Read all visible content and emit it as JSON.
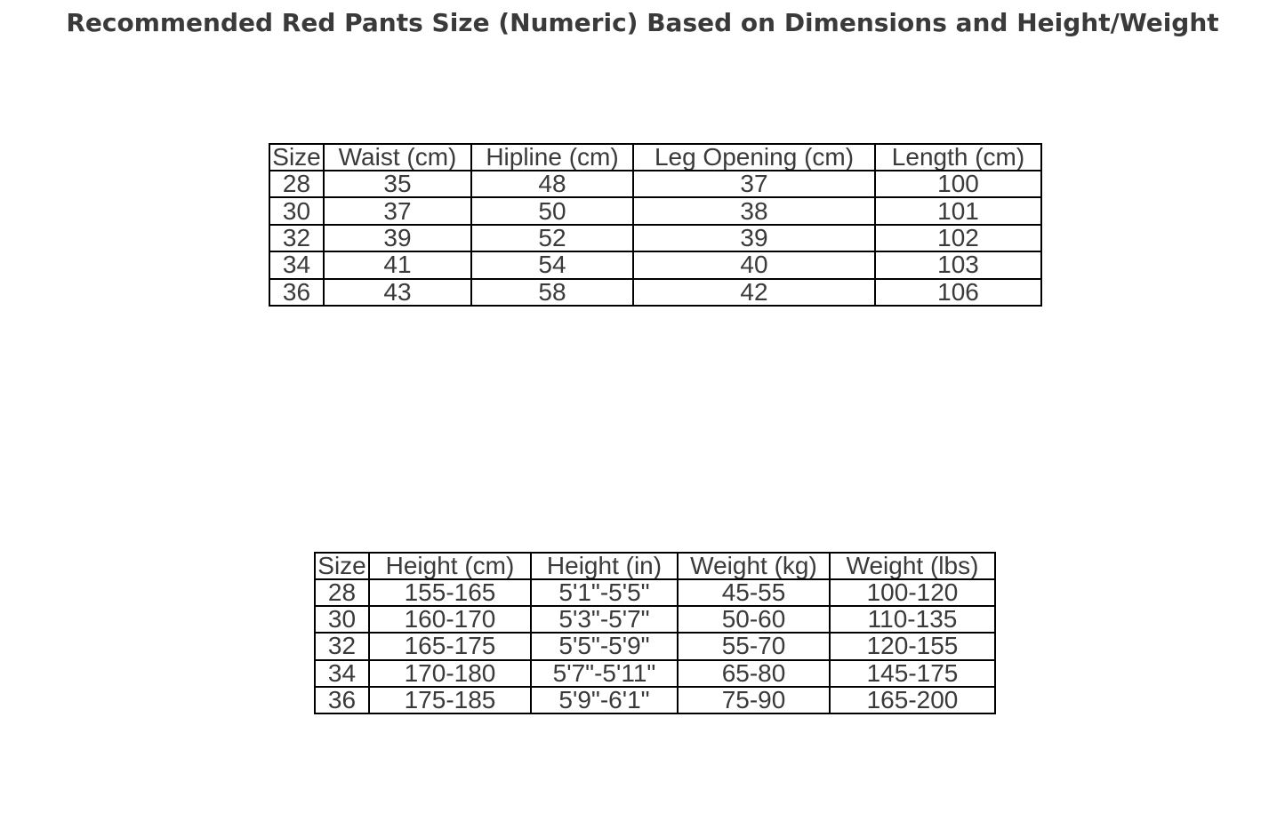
{
  "title": "Recommended Red Pants Size (Numeric) Based on Dimensions and Height/Weight",
  "colors": {
    "text": "#3a3a3a",
    "border": "#000000",
    "background": "#ffffff"
  },
  "chart_data": [
    {
      "type": "table",
      "name": "pants-dimensions-by-size",
      "columns": [
        "Size",
        "Waist (cm)",
        "Hipline (cm)",
        "Leg Opening (cm)",
        "Length (cm)"
      ],
      "rows": [
        [
          "28",
          "35",
          "48",
          "37",
          "100"
        ],
        [
          "30",
          "37",
          "50",
          "38",
          "101"
        ],
        [
          "32",
          "39",
          "52",
          "39",
          "102"
        ],
        [
          "34",
          "41",
          "54",
          "40",
          "103"
        ],
        [
          "36",
          "43",
          "58",
          "42",
          "106"
        ]
      ]
    },
    {
      "type": "table",
      "name": "height-weight-by-size",
      "columns": [
        "Size",
        "Height (cm)",
        "Height (in)",
        "Weight (kg)",
        "Weight (lbs)"
      ],
      "rows": [
        [
          "28",
          "155-165",
          "5'1\"-5'5\"",
          "45-55",
          "100-120"
        ],
        [
          "30",
          "160-170",
          "5'3\"-5'7\"",
          "50-60",
          "110-135"
        ],
        [
          "32",
          "165-175",
          "5'5\"-5'9\"",
          "55-70",
          "120-155"
        ],
        [
          "34",
          "170-180",
          "5'7\"-5'11\"",
          "65-80",
          "145-175"
        ],
        [
          "36",
          "175-185",
          "5'9\"-6'1\"",
          "75-90",
          "165-200"
        ]
      ]
    }
  ]
}
